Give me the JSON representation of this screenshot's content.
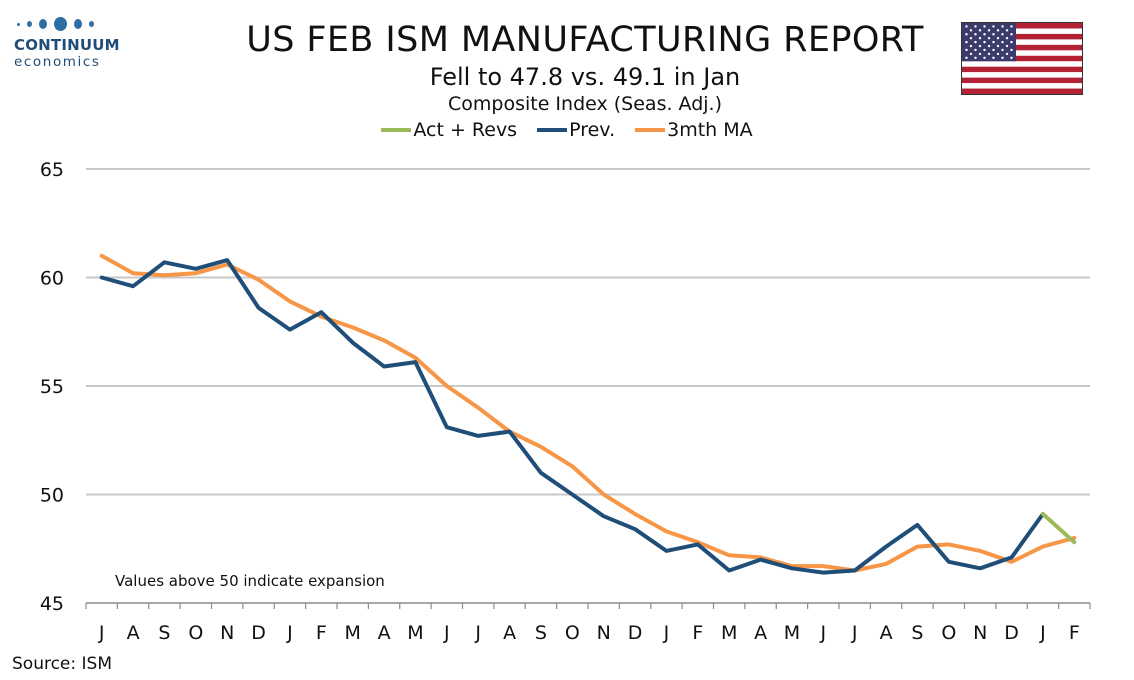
{
  "logo": {
    "name": "CONTINUUM",
    "sub": "economics"
  },
  "title": "US FEB ISM MANUFACTURING REPORT",
  "subtitle": "Fell to 47.8 vs. 49.1 in Jan",
  "subtitle2": "Composite Index (Seas. Adj.)",
  "source": "Source: ISM",
  "flag_icon": "us-flag-icon",
  "colors": {
    "act": "#9bbb59",
    "prev": "#1f4e79",
    "ma": "#f79646",
    "grid": "#c8c8c8"
  },
  "chart_data": {
    "type": "line",
    "title": "US FEB ISM MANUFACTURING REPORT",
    "categories": [
      "J",
      "A",
      "S",
      "O",
      "N",
      "D",
      "J",
      "F",
      "M",
      "A",
      "M",
      "J",
      "J",
      "A",
      "S",
      "O",
      "N",
      "D",
      "J",
      "F",
      "M",
      "A",
      "M",
      "J",
      "J",
      "A",
      "S",
      "O",
      "N",
      "D",
      "J",
      "F"
    ],
    "ylim": [
      45,
      65
    ],
    "yticks": [
      45,
      50,
      55,
      60,
      65
    ],
    "grid": true,
    "legend_position": "top-center",
    "annotation": "Values above 50 indicate expansion",
    "series": [
      {
        "name": "Act + Revs",
        "color": "#9bbb59",
        "values": [
          null,
          null,
          null,
          null,
          null,
          null,
          null,
          null,
          null,
          null,
          null,
          null,
          null,
          null,
          null,
          null,
          null,
          null,
          null,
          null,
          null,
          null,
          null,
          null,
          null,
          null,
          null,
          null,
          null,
          null,
          49.1,
          47.8
        ]
      },
      {
        "name": "Prev.",
        "color": "#1f4e79",
        "values": [
          60.0,
          59.6,
          60.7,
          60.4,
          60.8,
          58.6,
          57.6,
          58.4,
          57.0,
          55.9,
          56.1,
          53.1,
          52.7,
          52.9,
          51.0,
          50.0,
          49.0,
          48.4,
          47.4,
          47.7,
          46.5,
          47.0,
          46.6,
          46.4,
          46.5,
          47.6,
          48.6,
          46.9,
          46.6,
          47.1,
          49.1,
          null
        ]
      },
      {
        "name": "3mth MA",
        "color": "#f79646",
        "values": [
          61.0,
          60.2,
          60.1,
          60.2,
          60.6,
          59.9,
          58.9,
          58.2,
          57.7,
          57.1,
          56.3,
          55.0,
          54.0,
          52.9,
          52.2,
          51.3,
          50.0,
          49.1,
          48.3,
          47.8,
          47.2,
          47.1,
          46.7,
          46.7,
          46.5,
          46.8,
          47.6,
          47.7,
          47.4,
          46.9,
          47.6,
          48.0
        ]
      }
    ]
  }
}
